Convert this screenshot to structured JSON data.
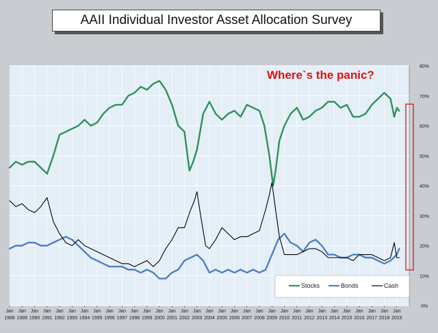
{
  "chart_data": {
    "type": "line",
    "title": "AAII Individual Investor Asset Allocation Survey",
    "annotation": "Where`s the panic?",
    "x_ticks": [
      {
        "month": "Jan",
        "year": "1988"
      },
      {
        "month": "Jan",
        "year": "1989"
      },
      {
        "month": "Jan",
        "year": "1990"
      },
      {
        "month": "Jan",
        "year": "1991"
      },
      {
        "month": "Jan",
        "year": "1992"
      },
      {
        "month": "Jan",
        "year": "1993"
      },
      {
        "month": "Jan",
        "year": "1994"
      },
      {
        "month": "Jan",
        "year": "1995"
      },
      {
        "month": "Jan",
        "year": "1996"
      },
      {
        "month": "Jan",
        "year": "1997"
      },
      {
        "month": "Jan",
        "year": "1998"
      },
      {
        "month": "Jan",
        "year": "1999"
      },
      {
        "month": "Jan",
        "year": "2000"
      },
      {
        "month": "Jan",
        "year": "2001"
      },
      {
        "month": "Jan",
        "year": "2002"
      },
      {
        "month": "Jan",
        "year": "2003"
      },
      {
        "month": "Jan",
        "year": "2004"
      },
      {
        "month": "Jan",
        "year": "2005"
      },
      {
        "month": "Jan",
        "year": "2006"
      },
      {
        "month": "Jan",
        "year": "2007"
      },
      {
        "month": "Jan",
        "year": "2008"
      },
      {
        "month": "Jan",
        "year": "2009"
      },
      {
        "month": "Jan",
        "year": "2010"
      },
      {
        "month": "Jan",
        "year": "2011"
      },
      {
        "month": "Jan",
        "year": "2012"
      },
      {
        "month": "Jan",
        "year": "2013"
      },
      {
        "month": "Jan",
        "year": "2014"
      },
      {
        "month": "Jan",
        "year": "2015"
      },
      {
        "month": "Jan",
        "year": "2016"
      },
      {
        "month": "Jan",
        "year": "2017"
      },
      {
        "month": "Jan",
        "year": "2018"
      },
      {
        "month": "Jan",
        "year": "2019"
      }
    ],
    "y_ticks": [
      "0%",
      "10%",
      "20%",
      "30%",
      "40%",
      "50%",
      "60%",
      "70%",
      "80%"
    ],
    "ylim": [
      0,
      80
    ],
    "y_axis_side": "right",
    "grid": true,
    "legend_position": "bottom-right",
    "series": [
      {
        "name": "Stocks",
        "color": "#2e9158",
        "x": [
          1988.0,
          1988.5,
          1989.0,
          1989.5,
          1990.0,
          1990.5,
          1991.0,
          1991.5,
          1992.0,
          1992.5,
          1993.0,
          1993.5,
          1994.0,
          1994.5,
          1995.0,
          1995.5,
          1996.0,
          1996.5,
          1997.0,
          1997.5,
          1998.0,
          1998.5,
          1999.0,
          1999.5,
          2000.0,
          2000.5,
          2001.0,
          2001.5,
          2002.0,
          2002.4,
          2002.7,
          2003.0,
          2003.5,
          2004.0,
          2004.5,
          2005.0,
          2005.5,
          2006.0,
          2006.5,
          2007.0,
          2007.5,
          2008.0,
          2008.4,
          2008.8,
          2009.1,
          2009.3,
          2009.6,
          2010.0,
          2010.5,
          2011.0,
          2011.5,
          2012.0,
          2012.5,
          2013.0,
          2013.5,
          2014.0,
          2014.5,
          2015.0,
          2015.5,
          2016.0,
          2016.5,
          2017.0,
          2017.5,
          2018.0,
          2018.5,
          2018.8,
          2019.0,
          2019.2
        ],
        "values": [
          46,
          48,
          47,
          48,
          48,
          46,
          44,
          50,
          57,
          58,
          59,
          60,
          62,
          60,
          61,
          64,
          66,
          67,
          67,
          70,
          71,
          73,
          72,
          74,
          75,
          72,
          67,
          60,
          58,
          45,
          48,
          52,
          64,
          68,
          64,
          62,
          64,
          65,
          63,
          67,
          66,
          65,
          60,
          50,
          40,
          45,
          55,
          60,
          64,
          66,
          62,
          63,
          65,
          66,
          68,
          68,
          66,
          67,
          63,
          63,
          64,
          67,
          69,
          71,
          69,
          63,
          66,
          65
        ]
      },
      {
        "name": "Bonds",
        "color": "#4f7fc0",
        "x": [
          1988.0,
          1988.5,
          1989.0,
          1989.5,
          1990.0,
          1990.5,
          1991.0,
          1991.5,
          1992.0,
          1992.5,
          1993.0,
          1993.5,
          1994.0,
          1994.5,
          1995.0,
          1995.5,
          1996.0,
          1996.5,
          1997.0,
          1997.5,
          1998.0,
          1998.5,
          1999.0,
          1999.5,
          2000.0,
          2000.5,
          2001.0,
          2001.5,
          2002.0,
          2002.5,
          2003.0,
          2003.5,
          2004.0,
          2004.5,
          2005.0,
          2005.5,
          2006.0,
          2006.5,
          2007.0,
          2007.5,
          2008.0,
          2008.5,
          2009.0,
          2009.5,
          2010.0,
          2010.5,
          2011.0,
          2011.5,
          2012.0,
          2012.5,
          2013.0,
          2013.5,
          2014.0,
          2014.5,
          2015.0,
          2015.5,
          2016.0,
          2016.5,
          2017.0,
          2017.5,
          2018.0,
          2018.5,
          2019.0,
          2019.2
        ],
        "values": [
          19,
          20,
          20,
          21,
          21,
          20,
          20,
          21,
          22,
          23,
          22,
          20,
          18,
          16,
          15,
          14,
          13,
          13,
          13,
          12,
          12,
          11,
          12,
          11,
          9,
          9,
          11,
          12,
          15,
          16,
          17,
          15,
          11,
          12,
          11,
          12,
          11,
          12,
          11,
          12,
          11,
          12,
          17,
          22,
          24,
          21,
          20,
          18,
          21,
          22,
          20,
          17,
          17,
          16,
          16,
          17,
          17,
          16,
          16,
          15,
          14,
          15,
          17,
          19
        ]
      },
      {
        "name": "Cash",
        "color": "#000000",
        "x": [
          1988.0,
          1988.5,
          1989.0,
          1989.5,
          1990.0,
          1990.5,
          1991.0,
          1991.5,
          1992.0,
          1992.5,
          1993.0,
          1993.5,
          1994.0,
          1994.5,
          1995.0,
          1995.5,
          1996.0,
          1996.5,
          1997.0,
          1997.5,
          1998.0,
          1998.5,
          1999.0,
          1999.5,
          2000.0,
          2000.5,
          2001.0,
          2001.5,
          2002.0,
          2002.5,
          2002.8,
          2003.0,
          2003.3,
          2003.7,
          2004.0,
          2004.5,
          2005.0,
          2005.5,
          2006.0,
          2006.5,
          2007.0,
          2007.5,
          2008.0,
          2008.5,
          2008.8,
          2009.0,
          2009.3,
          2009.6,
          2010.0,
          2010.5,
          2011.0,
          2011.5,
          2012.0,
          2012.5,
          2013.0,
          2013.5,
          2014.0,
          2014.5,
          2015.0,
          2015.5,
          2016.0,
          2016.5,
          2017.0,
          2017.5,
          2018.0,
          2018.5,
          2018.8,
          2019.0,
          2019.2
        ],
        "values": [
          35,
          33,
          34,
          32,
          31,
          33,
          36,
          28,
          24,
          21,
          20,
          22,
          20,
          19,
          18,
          17,
          16,
          15,
          14,
          14,
          13,
          14,
          15,
          13,
          15,
          19,
          22,
          26,
          26,
          32,
          35,
          38,
          30,
          20,
          19,
          22,
          26,
          24,
          22,
          23,
          23,
          24,
          25,
          32,
          37,
          41,
          32,
          23,
          17,
          17,
          17,
          18,
          19,
          19,
          18,
          16,
          16,
          16,
          16,
          15,
          17,
          17,
          17,
          16,
          15,
          16,
          21,
          16,
          16
        ]
      }
    ]
  }
}
